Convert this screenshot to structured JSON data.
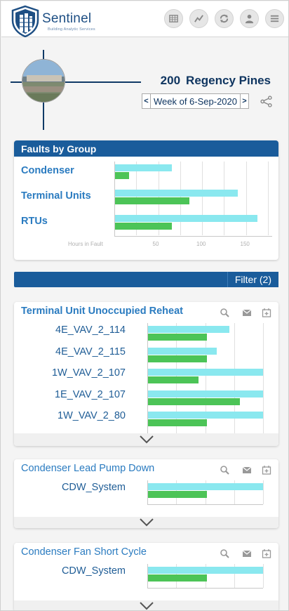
{
  "header": {
    "brand_title": "Sentinel",
    "brand_subtitle": "Building Analytic Services",
    "icons": [
      "grid-icon",
      "trend-icon",
      "refresh-icon",
      "user-icon",
      "menu-icon"
    ]
  },
  "site": {
    "number": "200",
    "name": "Regency Pines",
    "week_label": "Week of 6-Sep-2020",
    "prev": "<",
    "next": ">"
  },
  "faults_by_group": {
    "title": "Faults by Group",
    "axis_title": "Hours in Fault",
    "ticks": [
      "50",
      "100",
      "150"
    ]
  },
  "filter": {
    "label": "Filter (2)"
  },
  "colors": {
    "primary": "#1a5c9b",
    "cyan_bar": "#8ae8ef",
    "green_bar": "#4cc457",
    "link": "#2a7bc0"
  },
  "chart_data": [
    {
      "type": "bar",
      "title": "Faults by Group",
      "xlabel": "Hours in Fault",
      "xlim": [
        0,
        180
      ],
      "categories": [
        "Condenser",
        "Terminal Units",
        "RTUs"
      ],
      "series": [
        {
          "values": [
            65,
            140,
            162
          ]
        },
        {
          "values": [
            16,
            85,
            65
          ]
        }
      ]
    },
    {
      "type": "bar",
      "title": "Terminal Unit Unoccupied Reheat",
      "xlim": [
        0,
        1
      ],
      "categories": [
        "4E_VAV_2_114",
        "4E_VAV_2_115",
        "1W_VAV_2_107",
        "1E_VAV_2_107",
        "1W_VAV_2_80"
      ],
      "series": [
        {
          "values": [
            0.71,
            0.6,
            1.0,
            1.0,
            1.0
          ]
        },
        {
          "values": [
            0.51,
            0.51,
            0.44,
            0.8,
            0.51
          ]
        }
      ]
    },
    {
      "type": "bar",
      "title": "Condenser Lead Pump Down",
      "xlim": [
        0,
        1
      ],
      "categories": [
        "CDW_System"
      ],
      "series": [
        {
          "values": [
            1.0
          ]
        },
        {
          "values": [
            0.51
          ]
        }
      ]
    },
    {
      "type": "bar",
      "title": "Condenser Fan Short Cycle",
      "xlim": [
        0,
        1
      ],
      "categories": [
        "CDW_System"
      ],
      "series": [
        {
          "values": [
            1.0
          ]
        },
        {
          "values": [
            0.51
          ]
        }
      ]
    }
  ]
}
